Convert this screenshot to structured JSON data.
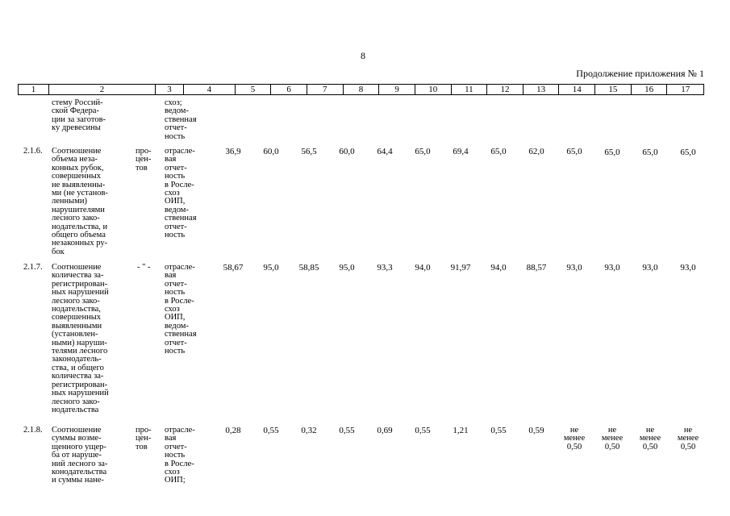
{
  "page_number": "8",
  "continuation_label": "Продолжение приложения № 1",
  "header_cols": [
    "1",
    "2",
    "3",
    "4",
    "5",
    "6",
    "7",
    "8",
    "9",
    "10",
    "11",
    "12",
    "13",
    "14",
    "15",
    "16",
    "17"
  ],
  "top_fragment": {
    "indicator": "стему Россий-\nской Федера-\nции за заготов-\nку древесины",
    "source": "схоз;\nведом-\nственная\nотчет-\nность"
  },
  "rows": [
    {
      "code": "2.1.6.",
      "indicator": "Соотношение\nобъема неза-\nконных рубок,\nсовершенных\nне выявленны-\nми (не установ-\nленными)\nнарушителями\nлесного зако-\nнодательства, и\nобщего объема\nнезаконных ру-\nбок",
      "unit": "про-\nцен-\nтов",
      "source": "отрасле-\nвая\nотчет-\nность\nв Росле-\nсхоз\nОИП,\nведом-\nственная\nотчет-\nность",
      "values": [
        "36,9",
        "60,0",
        "56,5",
        "60,0",
        "64,4",
        "65,0",
        "69,4",
        "65,0",
        "62,0",
        "65,0",
        "65,0",
        "65,0",
        "65,0"
      ]
    },
    {
      "code": "2.1.7.",
      "indicator": "Соотношение\nколичества за-\nрегистрирован-\nных нарушений\nлесного зако-\nнодательства,\nсовершенных\nвыявленными\n(установлен-\nными) наруши-\nтелями лесного\nзаконодатель-\nства, и общего\nколичества за-\nрегистрирован-\nных нарушений\nлесного зако-\nнодательства",
      "unit": "- \" -",
      "source": "отрасле-\nвая\nотчет-\nность\nв Росле-\nсхоз\nОИП,\nведом-\nственная\nотчет-\nность",
      "values": [
        "58,67",
        "95,0",
        "58,85",
        "95,0",
        "93,3",
        "94,0",
        "91,97",
        "94,0",
        "88,57",
        "93,0",
        "93,0",
        "93,0",
        "93,0"
      ]
    },
    {
      "code": "2.1.8.",
      "indicator": "Соотношение\nсуммы возме-\nщенного ущер-\nба от наруше-\nний лесного за-\nконодательства\nи суммы нане-",
      "unit": "про-\nцен-\nтов",
      "source": "отрасле-\nвая\nотчет-\nность\nв Росле-\nсхоз\nОИП;",
      "values": [
        "0,28",
        "0,55",
        "0,32",
        "0,55",
        "0,69",
        "0,55",
        "1,21",
        "0,55",
        "0,59",
        "не\nменее\n0,50",
        "не\nменее\n0,50",
        "не\nменее\n0,50",
        "не\nменее\n0,50"
      ]
    }
  ]
}
